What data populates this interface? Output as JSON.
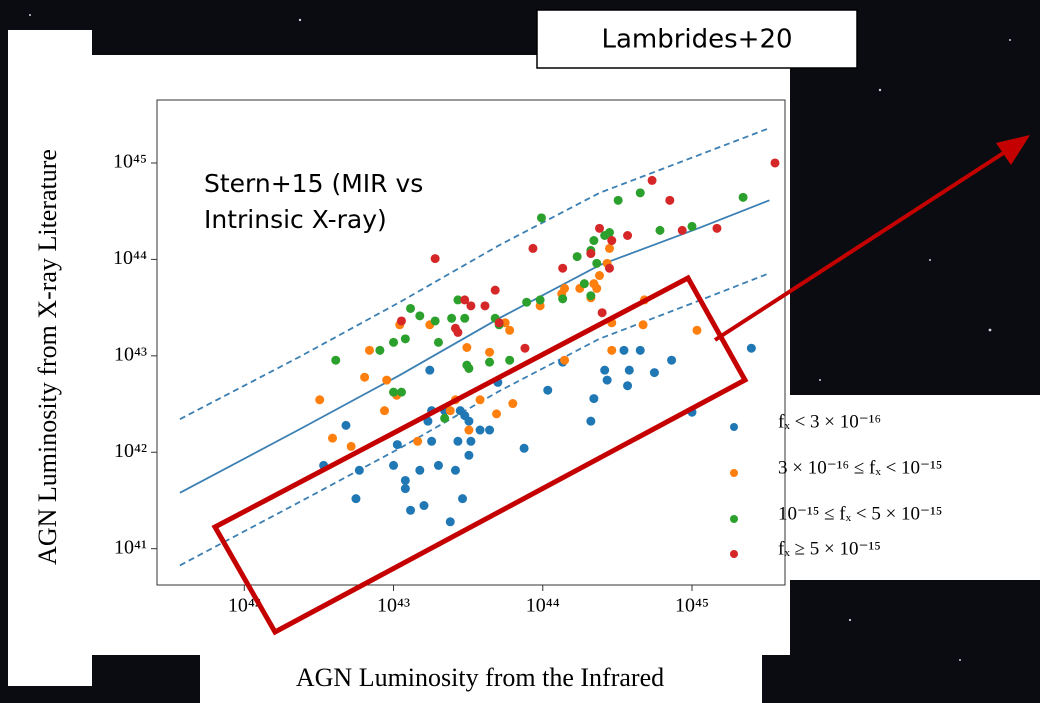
{
  "chart_data": {
    "type": "scatter",
    "title": "Lambrides+20",
    "annotations": [
      "Stern+15 (MIR vs",
      "Intrinsic X-ray)"
    ],
    "x_label": "AGN Luminosity from the Infrared",
    "y_label": "AGN Luminosity from X-ray Literature",
    "xscale": "log",
    "yscale": "log",
    "xlim": [
      2.6e+41,
      4.2e+45
    ],
    "ylim": [
      4.2e+40,
      4.5e+45
    ],
    "xticks": [
      {
        "value": 1e+42,
        "label": "10⁴²"
      },
      {
        "value": 1e+43,
        "label": "10⁴³"
      },
      {
        "value": 1e+44,
        "label": "10⁴⁴"
      },
      {
        "value": 1e+45,
        "label": "10⁴⁵"
      }
    ],
    "yticks": [
      {
        "value": 1e+41,
        "label": "10⁴¹"
      },
      {
        "value": 1e+42,
        "label": "10⁴²"
      },
      {
        "value": 1e+43,
        "label": "10⁴³"
      },
      {
        "value": 1e+44,
        "label": "10⁴⁴"
      },
      {
        "value": 1e+45,
        "label": "10⁴⁵"
      }
    ],
    "legend_position": "right",
    "series": [
      {
        "name": "fₓ < 3 × 10⁻¹⁶",
        "color": "#1f77b4",
        "x": [
          3.4e+42,
          4.8e+42,
          5.6e+42,
          5.9e+42,
          1e+43,
          1.06e+43,
          1.2e+43,
          1.2e+43,
          1.3e+43,
          1.5e+43,
          1.6e+43,
          1.7e+43,
          1.8e+43,
          1.75e+43,
          1.8e+43,
          2e+43,
          2.2e+43,
          2.4e+43,
          2.6e+43,
          2.7e+43,
          2.8e+43,
          2.9e+43,
          3e+43,
          3.2e+43,
          3.2e+43,
          3.3e+43,
          3.8e+43,
          4.4e+43,
          5e+43,
          7.5e+43,
          1.08e+44,
          1.36e+44,
          2.1e+44,
          2.2e+44,
          2.6e+44,
          2.7e+44,
          3.5e+44,
          3.8e+44,
          3.7e+44,
          4.5e+44,
          5.6e+44,
          7.3e+44,
          1e+45,
          2.5e+45
        ],
        "y": [
          7.3e+41,
          1.9e+42,
          3.3e+41,
          6.5e+41,
          7.3e+41,
          1.2e+42,
          5.1e+41,
          4.2e+41,
          2.5e+41,
          6.5e+41,
          2.8e+41,
          2.1e+42,
          2.7e+42,
          7.1e+42,
          1.3e+42,
          7.3e+41,
          2.7e+42,
          1.9e+41,
          6.5e+41,
          1.3e+42,
          2.7e+42,
          3.3e+41,
          2.4e+42,
          2.1e+42,
          9.3e+41,
          1.3e+42,
          1.7e+42,
          1.7e+42,
          5.3e+42,
          1.1e+42,
          4.4e+42,
          8.6e+42,
          2.1e+42,
          3.6e+42,
          7.1e+42,
          5.6e+42,
          1.14e+43,
          7.1e+42,
          4.9e+42,
          1.14e+43,
          6.7e+42,
          9e+42,
          2.6e+42,
          1.2e+43
        ]
      },
      {
        "name": "3 × 10⁻¹⁶ ≤ fₓ < 10⁻¹⁵",
        "color": "#ff7f0e",
        "x": [
          3.2e+42,
          3.9e+42,
          5.2e+42,
          6.4e+42,
          6.9e+42,
          8.7e+42,
          9e+42,
          1.05e+43,
          1.1e+43,
          1.45e+43,
          1.75e+43,
          2.4e+43,
          2.6e+43,
          3.1e+43,
          3.2e+43,
          3.8e+43,
          4.4e+43,
          4.9e+43,
          5.6e+43,
          6e+43,
          6.3e+43,
          9.6e+43,
          1.34e+44,
          1.4e+44,
          1.77e+44,
          2.1e+44,
          2.2e+44,
          2.3e+44,
          2.7e+44,
          2.9e+44,
          2.4e+44,
          2.8e+44,
          4.7e+44,
          2.9e+44,
          4.8e+44,
          1.08e+45,
          1.4e+44
        ],
        "y": [
          3.5e+42,
          1.4e+42,
          1.15e+42,
          6e+42,
          1.14e+43,
          2.7e+42,
          5.6e+42,
          3.9e+42,
          2.1e+43,
          1.3e+42,
          2.1e+43,
          2.7e+42,
          3.5e+42,
          1.22e+43,
          1.7e+42,
          3.5e+42,
          1.09e+43,
          2.5e+42,
          2.2e+43,
          1.84e+43,
          3.2e+42,
          3.3e+43,
          4.4e+43,
          5e+43,
          5e+43,
          4e+43,
          5.6e+43,
          5e+43,
          9.1e+43,
          2.2e+43,
          6.8e+43,
          1.3e+44,
          2.1e+43,
          1.14e+43,
          3.8e+43,
          1.84e+43,
          9e+42
        ]
      },
      {
        "name": "10⁻¹⁵ ≤ fₓ < 5 × 10⁻¹⁵",
        "color": "#2ca02c",
        "x": [
          4.1e+42,
          8.1e+42,
          1e+43,
          1e+43,
          1.13e+43,
          1.2e+43,
          1.3e+43,
          1.5e+43,
          1.9e+43,
          2e+43,
          2.45e+43,
          2.7e+43,
          3e+43,
          3.1e+43,
          3.2e+43,
          4.4e+43,
          4.8e+43,
          5.1e+43,
          6e+43,
          7.8e+43,
          9.6e+43,
          9.8e+43,
          1.36e+44,
          1.7e+44,
          1.9e+44,
          2.1e+44,
          2.1e+44,
          2.2e+44,
          2.3e+44,
          2.6e+44,
          2.8e+44,
          3.2e+44,
          4.5e+44,
          6.1e+44,
          1e+45,
          2.2e+45,
          2.2e+43
        ],
        "y": [
          9e+42,
          1.14e+43,
          1.38e+43,
          4.2e+42,
          4.2e+42,
          1.5e+43,
          3.1e+43,
          2.6e+43,
          2.3e+43,
          1.38e+43,
          2.45e+43,
          3.8e+43,
          2.45e+43,
          8e+42,
          7.4e+42,
          8.6e+42,
          2.45e+43,
          2.1e+43,
          9e+42,
          3.6e+43,
          3.8e+43,
          2.7e+44,
          3.9e+43,
          1.07e+44,
          5.6e+43,
          4.2e+43,
          1.24e+44,
          1.57e+44,
          9.1e+43,
          1.77e+44,
          1.9e+44,
          4.1e+44,
          4.9e+44,
          2e+44,
          2.2e+44,
          4.4e+44,
          2.25e+42
        ]
      },
      {
        "name": "fₓ ≥ 5 × 10⁻¹⁵",
        "color": "#d62728",
        "x": [
          1.13e+43,
          1.9e+43,
          2.6e+43,
          2.7e+43,
          3e+43,
          3.3e+43,
          4.1e+43,
          4.8e+43,
          5.1e+43,
          7.6e+43,
          8.6e+43,
          1.36e+44,
          2.1e+44,
          2.5e+44,
          2.8e+44,
          2.9e+44,
          2.4e+44,
          3.7e+44,
          5.4e+44,
          7.1e+44,
          8.6e+44,
          1.47e+45,
          3.6e+45
        ],
        "y": [
          2.3e+43,
          1.02e+44,
          1.93e+43,
          1.75e+43,
          3.8e+43,
          3.3e+43,
          3.3e+43,
          4.8e+43,
          2.2e+43,
          1.2e+43,
          1.3e+44,
          8.1e+43,
          1.15e+44,
          2.8e+43,
          8.1e+43,
          1.57e+44,
          2.1e+44,
          1.77e+44,
          6.6e+44,
          4.1e+44,
          2e+44,
          2.1e+44,
          1e+45
        ]
      }
    ],
    "fit_lines": [
      {
        "dashed": false,
        "color": "#3b7fb3",
        "x": [
          3.7e+41,
          2.3e+42,
          1.1e+43,
          5.1e+43,
          2.4e+44,
          1.1e+45,
          3.3e+45
        ],
        "y": [
          3.8e+41,
          1.7e+42,
          6.3e+42,
          2.45e+43,
          8.7e+43,
          2.1e+44,
          4.1e+44
        ]
      },
      {
        "dashed": true,
        "color": "#3b7fb3",
        "x": [
          3.7e+41,
          2.3e+42,
          1.1e+43,
          5.1e+43,
          2.4e+44,
          1.1e+45,
          3.3e+45
        ],
        "y": [
          2.2e+42,
          9.6e+42,
          3.6e+43,
          1.4e+44,
          4.9e+44,
          1.2e+45,
          2.3e+45
        ]
      },
      {
        "dashed": true,
        "color": "#3b7fb3",
        "x": [
          3.7e+41,
          2.3e+42,
          1.1e+43,
          5.1e+43,
          2.4e+44,
          1.1e+45,
          3.3e+45
        ],
        "y": [
          6.7e+40,
          3e+41,
          1.1e+42,
          4.3e+42,
          1.5e+43,
          3.7e+43,
          7.2e+43
        ]
      }
    ]
  }
}
